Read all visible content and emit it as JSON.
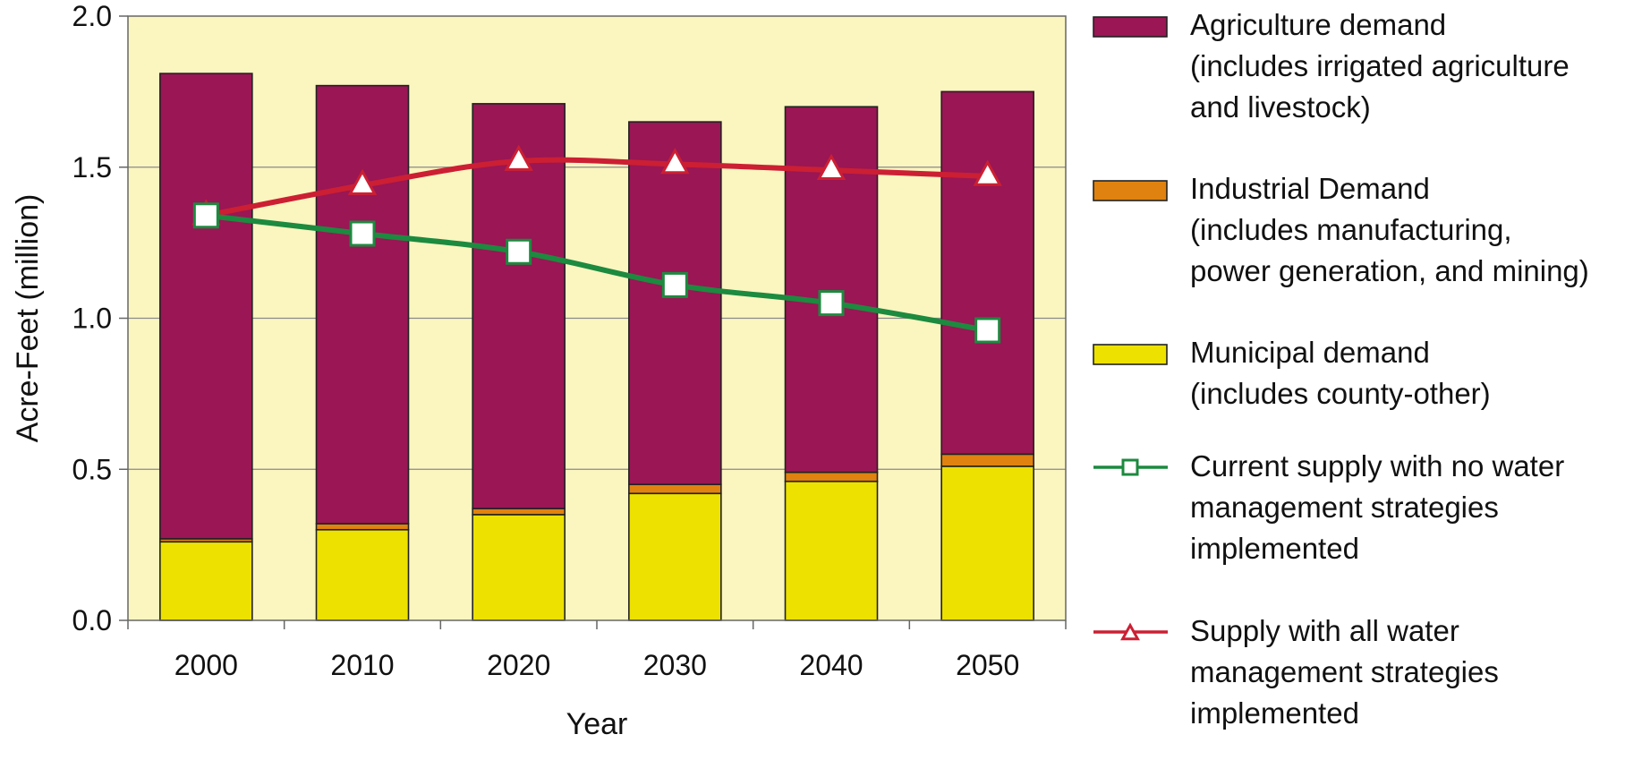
{
  "chart_data": {
    "type": "bar",
    "stacked": true,
    "title": "",
    "xlabel": "Year",
    "ylabel": "Acre-Feet (million)",
    "ylim": [
      0,
      2.0
    ],
    "yticks": [
      "0.0",
      "0.5",
      "1.0",
      "1.5",
      "2.0"
    ],
    "categories": [
      "2000",
      "2010",
      "2020",
      "2030",
      "2040",
      "2050"
    ],
    "grid": "horizontal",
    "legend_position": "right",
    "background_color": "#fbf5c0",
    "bar_series": [
      {
        "name": "Municipal demand (includes county-other)",
        "legend_lines": [
          "Municipal demand",
          "(includes county-other)"
        ],
        "color": "#ede100",
        "values": [
          0.26,
          0.3,
          0.35,
          0.42,
          0.46,
          0.51
        ]
      },
      {
        "name": "Industrial Demand (includes manufacturing, power generation, and mining)",
        "legend_lines": [
          "Industrial Demand",
          "(includes manufacturing,",
          "power generation, and mining)"
        ],
        "color": "#e0820f",
        "values": [
          0.01,
          0.02,
          0.02,
          0.03,
          0.03,
          0.04
        ]
      },
      {
        "name": "Agriculture demand (includes irrigated agriculture and livestock)",
        "legend_lines": [
          "Agriculture demand",
          "(includes irrigated agriculture",
          "and livestock)"
        ],
        "color": "#9a1654",
        "values": [
          1.54,
          1.45,
          1.34,
          1.2,
          1.21,
          1.2
        ]
      }
    ],
    "line_series": [
      {
        "name": "Current supply with no water management strategies implemented",
        "legend_lines": [
          "Current supply with no water",
          "management strategies",
          "implemented"
        ],
        "color": "#1c8a3f",
        "marker": "square",
        "values": [
          1.34,
          1.28,
          1.22,
          1.11,
          1.05,
          0.96
        ]
      },
      {
        "name": "Supply with all water management strategies implemented",
        "legend_lines": [
          "Supply with all water",
          "management strategies",
          "implemented"
        ],
        "color": "#cc1f33",
        "marker": "triangle",
        "values": [
          1.34,
          1.44,
          1.52,
          1.51,
          1.49,
          1.47
        ]
      }
    ]
  }
}
